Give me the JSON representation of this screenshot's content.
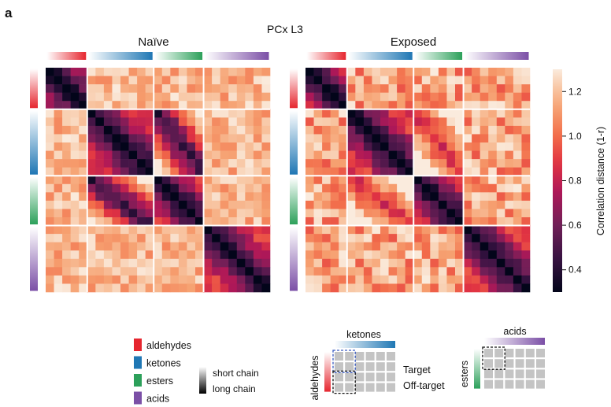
{
  "panel_letter": "a",
  "figure_title": "PCx L3",
  "colors": {
    "aldehydes": "#e6262f",
    "ketones": "#1f77b4",
    "esters": "#2ca05a",
    "acids": "#7b4fa6",
    "target_box": "#3a5bbf",
    "offtarget_box": "#111111",
    "schematic_cell": "#c4c4c4"
  },
  "chart_data": [
    {
      "type": "heatmap",
      "title": "Naïve",
      "groups": [
        "aldehydes",
        "ketones",
        "esters",
        "acids"
      ],
      "group_sizes": [
        5,
        8,
        6,
        8
      ],
      "matrix_size": 27,
      "diagonal_value": 0.3,
      "within_group_offdiag_range": [
        0.35,
        0.95
      ],
      "between_group_range": [
        1.05,
        1.3
      ],
      "ketone_ester_similarity": "high"
    },
    {
      "type": "heatmap",
      "title": "Exposed",
      "groups": [
        "aldehydes",
        "ketones",
        "esters",
        "acids"
      ],
      "group_sizes": [
        5,
        8,
        6,
        8
      ],
      "matrix_size": 27,
      "diagonal_value": 0.3,
      "within_group_offdiag_range": [
        0.35,
        0.95
      ],
      "between_group_range": [
        0.95,
        1.3
      ],
      "ketone_ester_similarity": "reduced"
    }
  ],
  "colorbar": {
    "label": "Correlation distance (1-r)",
    "min": 0.3,
    "max": 1.3,
    "ticks": [
      "0.4",
      "0.6",
      "0.8",
      "1.0",
      "1.2"
    ],
    "tick_values": [
      0.4,
      0.6,
      0.8,
      1.0,
      1.2
    ]
  },
  "legend": {
    "items": [
      {
        "label": "aldehydes",
        "color_key": "aldehydes"
      },
      {
        "label": "ketones",
        "color_key": "ketones"
      },
      {
        "label": "esters",
        "color_key": "esters"
      },
      {
        "label": "acids",
        "color_key": "acids"
      }
    ],
    "chain_short": "short chain",
    "chain_long": "long chain"
  },
  "schematic_1": {
    "top_label": "ketones",
    "side_label": "aldehydes",
    "top_color_key": "ketones",
    "side_color_key": "aldehydes",
    "rows": 4,
    "cols": 6
  },
  "target_label": "Target",
  "offtarget_label": "Off-target",
  "schematic_2": {
    "top_label": "acids",
    "side_label": "esters",
    "top_color_key": "acids",
    "side_color_key": "esters",
    "rows": 4,
    "cols": 6
  }
}
